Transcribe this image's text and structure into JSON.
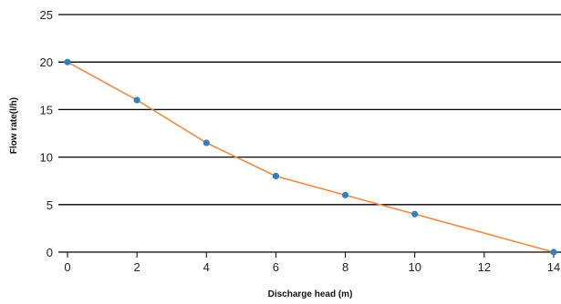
{
  "chart_data": {
    "type": "line",
    "xlabel": "Discharge head (m)",
    "ylabel": "Flow rate(l/h)",
    "xlim": [
      0,
      14
    ],
    "ylim": [
      0,
      25
    ],
    "x_ticks": [
      "0",
      "2",
      "4",
      "6",
      "8",
      "10",
      "12",
      "14"
    ],
    "y_ticks": [
      "0",
      "5",
      "10",
      "15",
      "20",
      "25"
    ],
    "grid": "horizontal",
    "legend": "none",
    "series": [
      {
        "x": [
          0,
          2,
          4,
          6,
          8,
          10,
          14
        ],
        "values": [
          20,
          16,
          11.5,
          8,
          6,
          4,
          0
        ]
      }
    ]
  },
  "colors": {
    "line": "#f08a3e",
    "marker": "#2f7fc1",
    "grid": "#000000"
  }
}
